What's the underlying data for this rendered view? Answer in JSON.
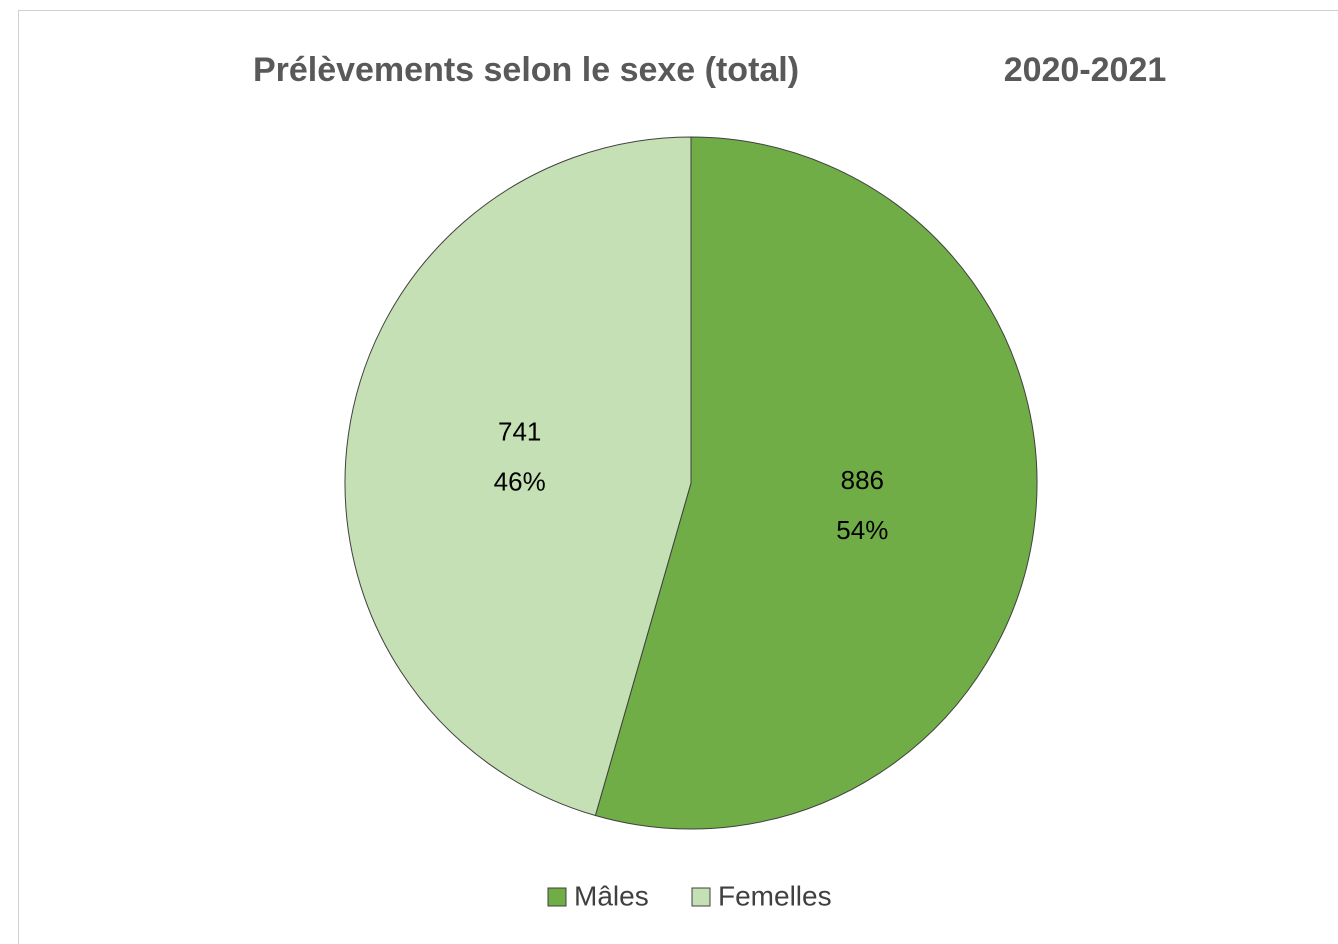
{
  "chart_data": {
    "type": "pie",
    "title": "Prélèvements selon le sexe (total)",
    "subtitle": "2020-2021",
    "categories": [
      "Mâles",
      "Femelles"
    ],
    "values": [
      886,
      741
    ],
    "percentages": [
      54,
      46
    ],
    "percentage_labels": [
      "54%",
      "46%"
    ],
    "colors": [
      "#70ad47",
      "#c5e0b4"
    ],
    "legend": "bottom"
  }
}
